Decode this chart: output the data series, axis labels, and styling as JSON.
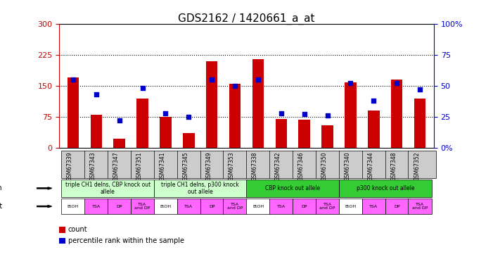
{
  "title": "GDS2162 / 1420661_a_at",
  "samples": [
    "GSM67339",
    "GSM67343",
    "GSM67347",
    "GSM67351",
    "GSM67341",
    "GSM67345",
    "GSM67349",
    "GSM67353",
    "GSM67338",
    "GSM67342",
    "GSM67346",
    "GSM67350",
    "GSM67340",
    "GSM67344",
    "GSM67348",
    "GSM67352"
  ],
  "counts": [
    170,
    80,
    22,
    120,
    75,
    35,
    210,
    155,
    215,
    70,
    68,
    55,
    158,
    90,
    165,
    120
  ],
  "percentiles": [
    55,
    43,
    22,
    48,
    28,
    25,
    55,
    50,
    55,
    28,
    27,
    26,
    52,
    38,
    52,
    47
  ],
  "bar_color": "#cc0000",
  "dot_color": "#0000cc",
  "ylim_left": [
    0,
    300
  ],
  "ylim_right": [
    0,
    100
  ],
  "yticks_left": [
    0,
    75,
    150,
    225,
    300
  ],
  "yticks_right": [
    0,
    25,
    50,
    75,
    100
  ],
  "ytick_labels_left": [
    "0",
    "75",
    "150",
    "225",
    "300"
  ],
  "ytick_labels_right": [
    "0%",
    "25",
    "50",
    "75",
    "100%"
  ],
  "genotype_groups": [
    {
      "label": "triple CH1 delns, CBP knock out\nallele",
      "start": 0,
      "end": 4,
      "color": "#ccffcc"
    },
    {
      "label": "triple CH1 delns, p300 knock\nout allele",
      "start": 4,
      "end": 8,
      "color": "#ccffcc"
    },
    {
      "label": "CBP knock out allele",
      "start": 8,
      "end": 12,
      "color": "#33cc33"
    },
    {
      "label": "p300 knock out allele",
      "start": 12,
      "end": 16,
      "color": "#33cc33"
    }
  ],
  "agent_labels": [
    "EtOH",
    "TSA",
    "DP",
    "TSA\nand DP",
    "EtOH",
    "TSA",
    "DP",
    "TSA\nand DP",
    "EtOH",
    "TSA",
    "DP",
    "TSA\nand DP",
    "EtOH",
    "TSA",
    "DP",
    "TSA\nand DP"
  ],
  "bg_color": "#ffffff",
  "left_axis_color": "#cc0000",
  "right_axis_color": "#0000cc"
}
